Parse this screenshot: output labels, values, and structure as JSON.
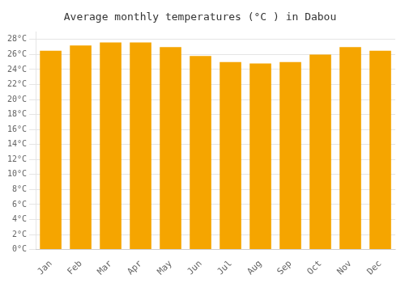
{
  "chart_data": {
    "type": "bar",
    "title": "Average monthly temperatures (°C ) in Dabou",
    "categories": [
      "Jan",
      "Feb",
      "Mar",
      "Apr",
      "May",
      "Jun",
      "Jul",
      "Aug",
      "Sep",
      "Oct",
      "Nov",
      "Dec"
    ],
    "values": [
      26.5,
      27.2,
      27.6,
      27.6,
      27.0,
      25.8,
      25.0,
      24.8,
      25.0,
      26.0,
      27.0,
      26.5
    ],
    "color": "#F5A500",
    "ylim": [
      0,
      29
    ],
    "yticks": [
      {
        "value": 0,
        "label": "0°C"
      },
      {
        "value": 2,
        "label": "2°C"
      },
      {
        "value": 4,
        "label": "4°C"
      },
      {
        "value": 6,
        "label": "6°C"
      },
      {
        "value": 8,
        "label": "8°C"
      },
      {
        "value": 10,
        "label": "10°C"
      },
      {
        "value": 12,
        "label": "12°C"
      },
      {
        "value": 14,
        "label": "14°C"
      },
      {
        "value": 16,
        "label": "16°C"
      },
      {
        "value": 18,
        "label": "18°C"
      },
      {
        "value": 20,
        "label": "20°C"
      },
      {
        "value": 22,
        "label": "22°C"
      },
      {
        "value": 24,
        "label": "24°C"
      },
      {
        "value": 26,
        "label": "26°C"
      },
      {
        "value": 28,
        "label": "28°C"
      }
    ],
    "grid": true
  }
}
